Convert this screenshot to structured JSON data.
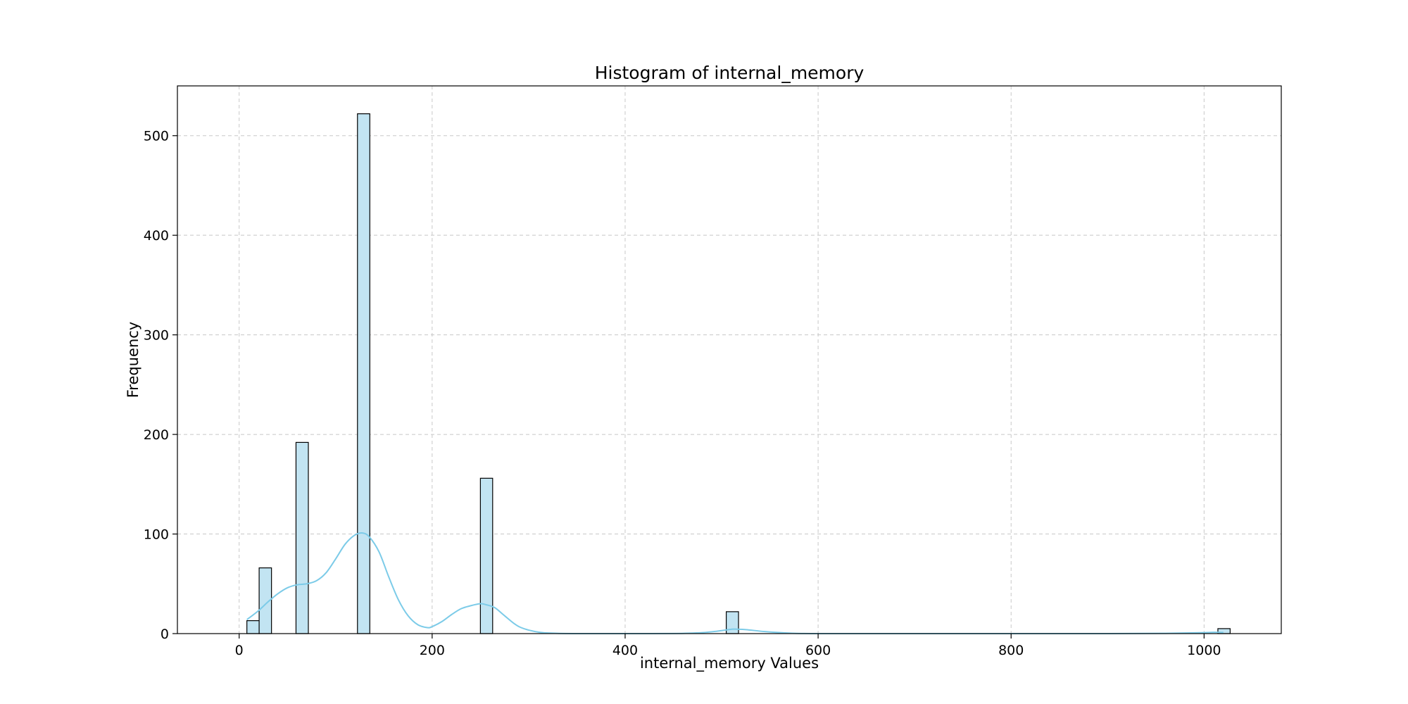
{
  "chart_data": {
    "type": "bar",
    "title": "Histogram of internal_memory",
    "xlabel": "internal_memory Values",
    "ylabel": "Frequency",
    "xlim": [
      -64,
      1080
    ],
    "ylim": [
      0,
      550
    ],
    "xticks": [
      0,
      200,
      400,
      600,
      800,
      1000
    ],
    "yticks": [
      0,
      100,
      200,
      300,
      400,
      500
    ],
    "grid": true,
    "bar_fill": "#c2e4f2",
    "bar_edge": "#000000",
    "kde_color": "#7ccbe8",
    "bins": [
      {
        "x0": 8,
        "x1": 20.7,
        "value": 13
      },
      {
        "x0": 20.7,
        "x1": 33.5,
        "value": 66
      },
      {
        "x0": 58.9,
        "x1": 71.7,
        "value": 192
      },
      {
        "x0": 122.6,
        "x1": 135.4,
        "value": 522
      },
      {
        "x0": 250,
        "x1": 262.7,
        "value": 156
      },
      {
        "x0": 504.8,
        "x1": 517.5,
        "value": 22
      },
      {
        "x0": 1014.3,
        "x1": 1027,
        "value": 5
      }
    ],
    "kde": {
      "x": [
        8,
        20,
        30,
        40,
        50,
        60,
        70,
        80,
        90,
        100,
        110,
        120,
        128,
        135,
        145,
        155,
        165,
        175,
        185,
        195,
        200,
        210,
        220,
        230,
        240,
        250,
        256,
        265,
        275,
        290,
        310,
        330,
        360,
        400,
        450,
        480,
        500,
        512,
        525,
        545,
        570,
        600,
        700,
        800,
        900,
        960,
        1000,
        1010,
        1020
      ],
      "y": [
        14,
        23,
        32,
        40,
        46,
        49,
        50,
        53,
        61,
        75,
        90,
        99,
        101,
        97,
        82,
        57,
        34,
        18,
        9,
        6,
        7,
        12,
        19,
        25,
        28,
        30,
        29,
        26,
        18,
        7,
        1.5,
        0.3,
        0,
        0,
        0.1,
        1,
        3,
        4.5,
        4,
        2,
        0.5,
        0,
        0,
        0,
        0,
        0.3,
        1,
        1.3,
        1.1
      ]
    }
  }
}
